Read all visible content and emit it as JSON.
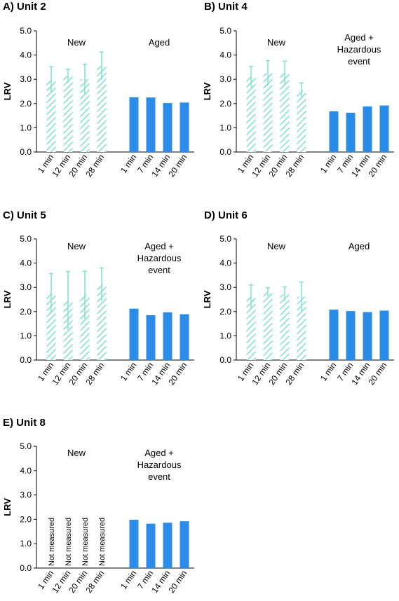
{
  "chart_data": [
    {
      "panel_label": "A) Unit 2",
      "type": "bar",
      "ylabel": "LRV",
      "ylim": [
        0,
        5
      ],
      "yticks": [
        "0.0",
        "1.0",
        "2.0",
        "3.0",
        "4.0",
        "5.0"
      ],
      "groups": [
        {
          "label": "New",
          "style": "hatched",
          "color": "#7fe0d0",
          "categories": [
            "1 min",
            "12 min",
            "20 min",
            "28 min"
          ],
          "values": [
            2.97,
            3.13,
            3.0,
            3.55
          ],
          "errors": [
            0.55,
            0.28,
            0.62,
            0.57
          ]
        },
        {
          "label": "Aged",
          "style": "solid",
          "color": "#2b8ce8",
          "categories": [
            "1 min",
            "7 min",
            "14 min",
            "20 min"
          ],
          "values": [
            2.26,
            2.25,
            2.02,
            2.04
          ]
        }
      ]
    },
    {
      "panel_label": "B) Unit 4",
      "type": "bar",
      "ylabel": "LRV",
      "ylim": [
        0,
        5
      ],
      "yticks": [
        "0.0",
        "1.0",
        "2.0",
        "3.0",
        "4.0",
        "5.0"
      ],
      "groups": [
        {
          "label": "New",
          "style": "hatched",
          "color": "#7fe0d0",
          "categories": [
            "1 min",
            "12 min",
            "20 min",
            "28 min"
          ],
          "values": [
            3.1,
            3.25,
            3.25,
            2.55
          ],
          "errors": [
            0.43,
            0.52,
            0.5,
            0.3
          ]
        },
        {
          "label": "Aged + Hazardous event",
          "style": "solid",
          "color": "#2b8ce8",
          "categories": [
            "1 min",
            "7 min",
            "14 min",
            "20 min"
          ],
          "values": [
            1.68,
            1.62,
            1.88,
            1.92
          ]
        }
      ]
    },
    {
      "panel_label": "C) Unit 5",
      "type": "bar",
      "ylabel": "LRV",
      "ylim": [
        0,
        5
      ],
      "yticks": [
        "0.0",
        "1.0",
        "2.0",
        "3.0",
        "4.0",
        "5.0"
      ],
      "groups": [
        {
          "label": "New",
          "style": "hatched",
          "color": "#7fe0d0",
          "categories": [
            "1 min",
            "12 min",
            "20 min",
            "28 min"
          ],
          "values": [
            2.75,
            2.45,
            2.68,
            3.12
          ],
          "errors": [
            0.82,
            1.2,
            0.98,
            0.68
          ]
        },
        {
          "label": "Aged + Hazardous event",
          "style": "solid",
          "color": "#2b8ce8",
          "categories": [
            "1 min",
            "7 min",
            "14 min",
            "20 min"
          ],
          "values": [
            2.12,
            1.85,
            1.97,
            1.89
          ]
        }
      ]
    },
    {
      "panel_label": "D) Unit 6",
      "type": "bar",
      "ylabel": "LRV",
      "ylim": [
        0,
        5
      ],
      "yticks": [
        "0.0",
        "1.0",
        "2.0",
        "3.0",
        "4.0",
        "5.0"
      ],
      "groups": [
        {
          "label": "New",
          "style": "hatched",
          "color": "#7fe0d0",
          "categories": [
            "1 min",
            "12 min",
            "20 min",
            "28 min"
          ],
          "values": [
            2.6,
            2.8,
            2.72,
            2.62
          ],
          "errors": [
            0.5,
            0.18,
            0.3,
            0.6
          ]
        },
        {
          "label": "Aged",
          "style": "solid",
          "color": "#2b8ce8",
          "categories": [
            "1 min",
            "7 min",
            "14 min",
            "20 min"
          ],
          "values": [
            2.08,
            2.02,
            1.98,
            2.04
          ]
        }
      ]
    },
    {
      "panel_label": "E) Unit 8",
      "type": "bar",
      "ylabel": "LRV",
      "ylim": [
        0,
        5
      ],
      "yticks": [
        "0.0",
        "1.0",
        "2.0",
        "3.0",
        "4.0",
        "5.0"
      ],
      "groups": [
        {
          "label": "New",
          "style": "none",
          "color": "#7fe0d0",
          "categories": [
            "1 min",
            "12 min",
            "20 min",
            "28 min"
          ],
          "values": [
            null,
            null,
            null,
            null
          ],
          "bar_text": [
            "Not measured",
            "Not measured",
            "Not measured",
            "Not measured"
          ]
        },
        {
          "label": "Aged + Hazardous event",
          "style": "solid",
          "color": "#2b8ce8",
          "categories": [
            "1 min",
            "7 min",
            "14 min",
            "20 min"
          ],
          "values": [
            1.98,
            1.82,
            1.86,
            1.92
          ]
        }
      ]
    }
  ]
}
